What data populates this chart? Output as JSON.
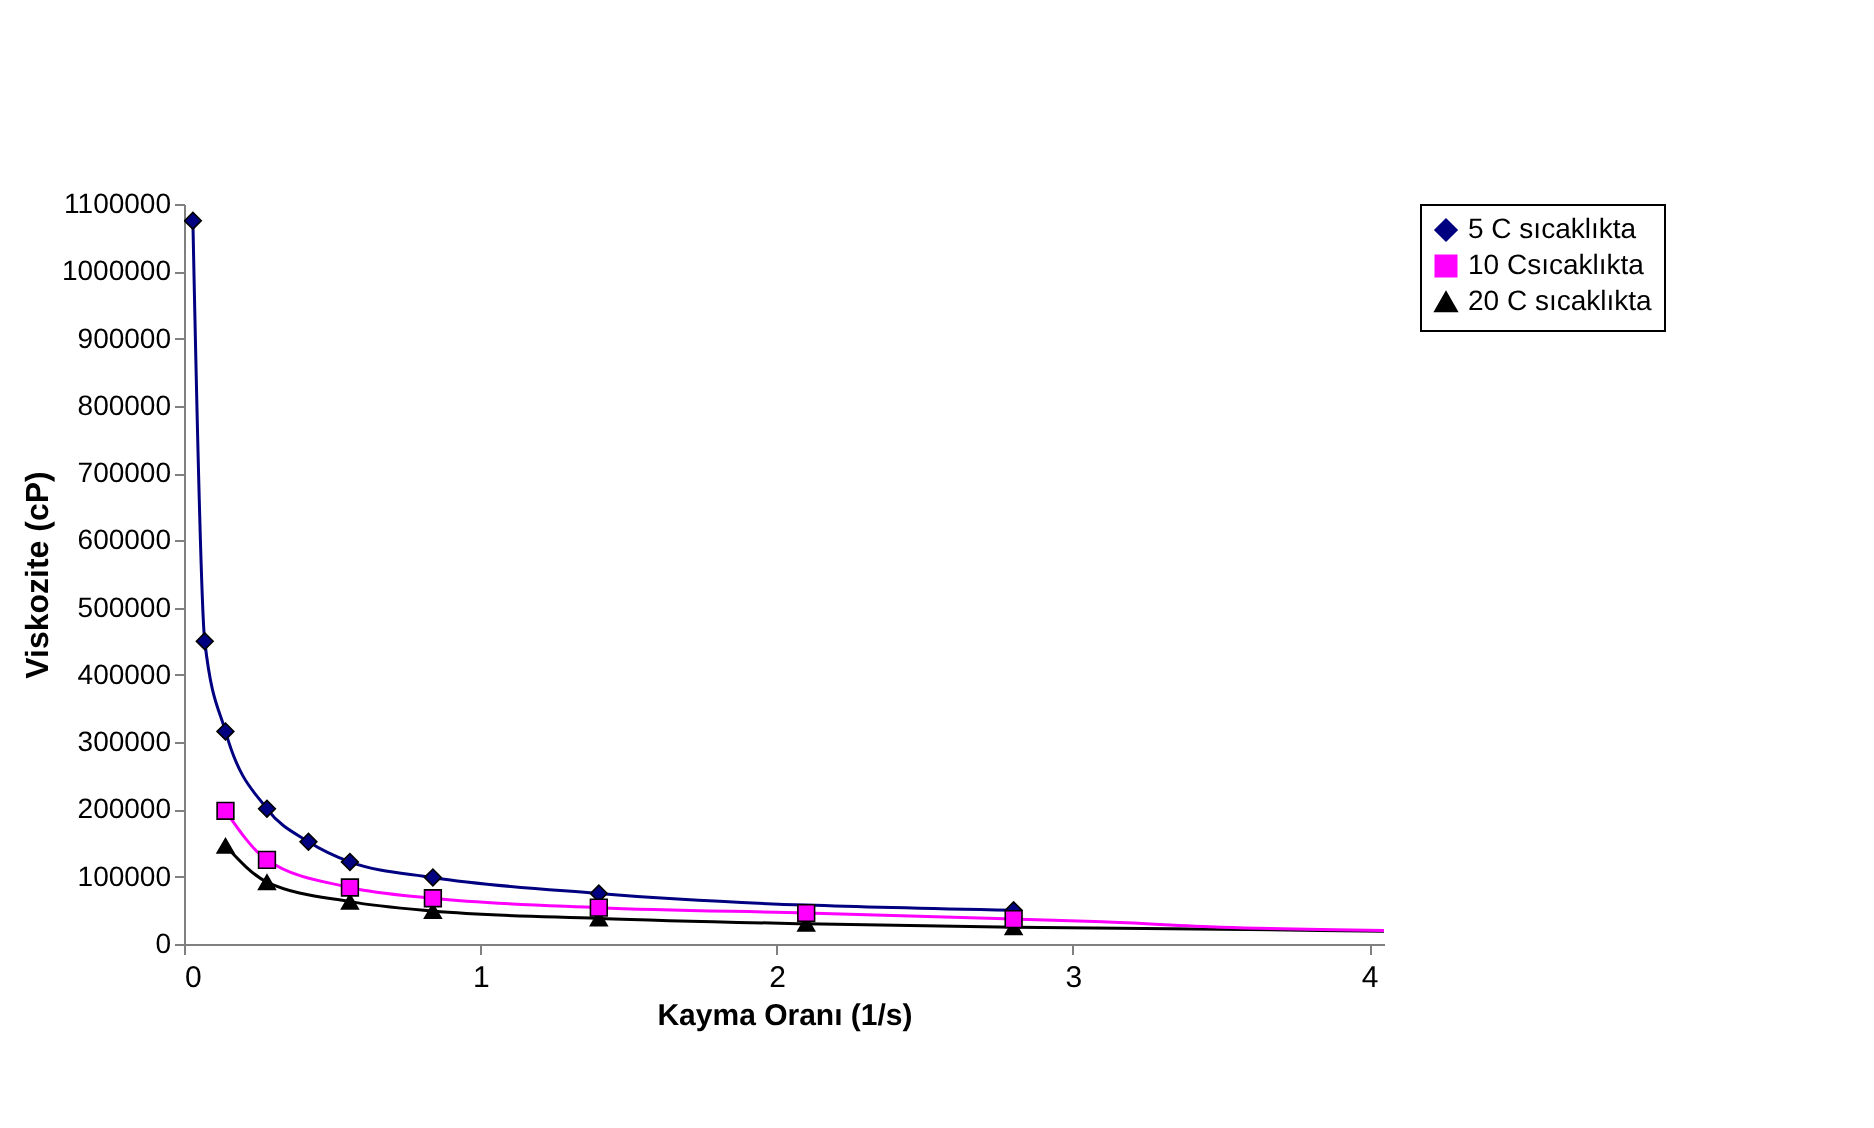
{
  "chart_data": {
    "type": "line",
    "xlabel": "Kayma Oranı (1/s)",
    "ylabel": "Viskozite (cP)",
    "xlim": [
      0,
      4.05
    ],
    "xticks": [
      0,
      1,
      2,
      3,
      4
    ],
    "ylim": [
      0,
      1100000
    ],
    "yticks": [
      0,
      100000,
      200000,
      300000,
      400000,
      500000,
      600000,
      700000,
      800000,
      900000,
      1000000,
      1100000
    ],
    "grid": false,
    "legend": "right",
    "series": [
      {
        "name": "5 C sıcaklıkta",
        "color": "#000080",
        "marker": "diamond",
        "x": [
          0.03,
          0.07,
          0.14,
          0.28,
          0.42,
          0.56,
          0.84,
          1.4,
          2.8
        ],
        "values": [
          1075000,
          450000,
          316000,
          201000,
          152000,
          122000,
          99000,
          75000,
          50000
        ]
      },
      {
        "name": "10 Csıcaklıkta",
        "color": "#ff00ff",
        "marker": "square",
        "x": [
          0.14,
          0.28,
          0.56,
          0.84,
          1.4,
          2.1,
          2.8
        ],
        "values": [
          198000,
          125000,
          84000,
          68000,
          54000,
          46000,
          37000
        ]
      },
      {
        "name": "20 C sıcaklıkta",
        "color": "#000000",
        "marker": "triangle",
        "x": [
          0.14,
          0.28,
          0.56,
          0.84,
          1.4,
          2.1,
          2.8
        ],
        "values": [
          146000,
          92000,
          63000,
          49000,
          38000,
          30000,
          25000
        ]
      },
      {
        "type": "line",
        "color": "#ff00ff",
        "marker": "none",
        "x": [
          2.8,
          3.1,
          3.5,
          4.05
        ],
        "values": [
          37000,
          33000,
          25000,
          20000
        ]
      },
      {
        "type": "line",
        "color": "#000000",
        "marker": "none",
        "x": [
          2.8,
          3.5,
          4.05
        ],
        "values": [
          25000,
          22000,
          19000
        ]
      }
    ]
  }
}
